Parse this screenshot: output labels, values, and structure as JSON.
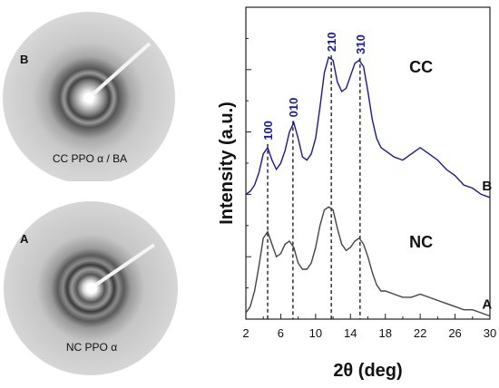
{
  "patterns": {
    "top": {
      "letter": "B",
      "caption": "CC PPO α / BA"
    },
    "bottom": {
      "letter": "A",
      "caption": "NC PPO α"
    }
  },
  "chart_data": {
    "type": "line",
    "xlabel": "2θ (deg)",
    "ylabel": "Intensity (a.u.)",
    "xlim": [
      2,
      30
    ],
    "ylim": [
      0,
      1
    ],
    "x_ticks": [
      2,
      6,
      10,
      14,
      18,
      22,
      26,
      30
    ],
    "x_tick_labels": [
      "2",
      "6",
      "10",
      "14",
      "18",
      "22",
      "26",
      "30"
    ],
    "y_tick_labels_shown": false,
    "grid": false,
    "series": [
      {
        "name": "CC",
        "end_label": "B",
        "color": "#1a1a8c",
        "x": [
          2.0,
          2.5,
          3.0,
          3.5,
          4.0,
          4.5,
          5.0,
          5.5,
          6.0,
          6.5,
          7.0,
          7.5,
          8.0,
          8.5,
          9.0,
          9.5,
          10.0,
          10.5,
          11.0,
          11.5,
          12.0,
          12.5,
          13.0,
          13.5,
          14.0,
          14.5,
          15.0,
          15.5,
          16.0,
          16.5,
          17.0,
          17.5,
          18.0,
          19.0,
          20.0,
          21.0,
          22.0,
          23.0,
          24.0,
          25.0,
          26.0,
          27.0,
          28.0,
          29.0,
          30.0
        ],
        "y": [
          0.4,
          0.41,
          0.43,
          0.47,
          0.53,
          0.55,
          0.51,
          0.48,
          0.5,
          0.54,
          0.6,
          0.63,
          0.58,
          0.52,
          0.51,
          0.53,
          0.58,
          0.68,
          0.79,
          0.84,
          0.83,
          0.76,
          0.73,
          0.74,
          0.78,
          0.82,
          0.83,
          0.81,
          0.73,
          0.64,
          0.58,
          0.55,
          0.54,
          0.52,
          0.51,
          0.53,
          0.55,
          0.53,
          0.51,
          0.48,
          0.46,
          0.43,
          0.42,
          0.4,
          0.39
        ]
      },
      {
        "name": "NC",
        "end_label": "A",
        "color": "#444444",
        "x": [
          2.0,
          2.5,
          3.0,
          3.5,
          4.0,
          4.5,
          5.0,
          5.5,
          6.0,
          6.5,
          7.0,
          7.5,
          8.0,
          8.5,
          9.0,
          9.5,
          10.0,
          10.5,
          11.0,
          11.5,
          12.0,
          12.5,
          13.0,
          13.5,
          14.0,
          14.5,
          15.0,
          15.5,
          16.0,
          16.5,
          17.0,
          17.5,
          18.0,
          19.0,
          20.0,
          21.0,
          22.0,
          23.0,
          24.0,
          25.0,
          26.0,
          27.0,
          28.0,
          29.0,
          30.0
        ],
        "y": [
          0.02,
          0.04,
          0.09,
          0.17,
          0.26,
          0.28,
          0.24,
          0.2,
          0.21,
          0.24,
          0.25,
          0.23,
          0.18,
          0.16,
          0.16,
          0.18,
          0.23,
          0.3,
          0.35,
          0.36,
          0.35,
          0.29,
          0.24,
          0.22,
          0.23,
          0.25,
          0.26,
          0.24,
          0.2,
          0.15,
          0.11,
          0.09,
          0.09,
          0.08,
          0.07,
          0.07,
          0.08,
          0.07,
          0.06,
          0.05,
          0.04,
          0.03,
          0.03,
          0.02,
          0.01
        ]
      }
    ],
    "reflections": [
      {
        "label": "100",
        "x": 4.5
      },
      {
        "label": "010",
        "x": 7.4
      },
      {
        "label": "210",
        "x": 11.8
      },
      {
        "label": "310",
        "x": 15.1
      }
    ]
  }
}
